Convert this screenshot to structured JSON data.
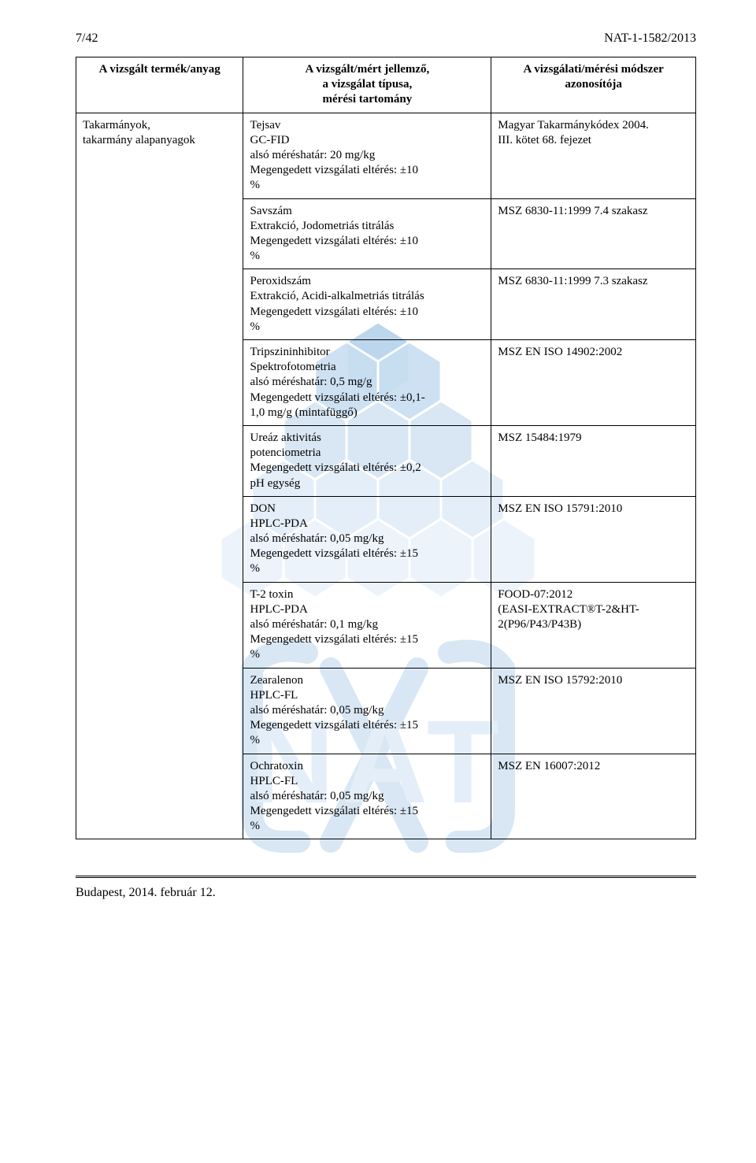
{
  "page": {
    "left_header": "7/42",
    "right_header": "NAT-1-1582/2013",
    "footer": "Budapest, 2014. február 12."
  },
  "table": {
    "headers": {
      "c1": "A vizsgált termék/anyag",
      "c2": "A vizsgált/mért jellemző,\na vizsgálat típusa,\nmérési tartomány",
      "c3": "A vizsgálati/mérési módszer\nazonosítója"
    },
    "product": "Takarmányok,\ntakarmány alapanyagok",
    "rows": [
      {
        "method": "Tejsav\nGC-FID\nalsó méréshatár: 20 mg/kg\nMegengedett vizsgálati eltérés: ±10\n%",
        "id": "Magyar Takarmánykódex 2004.\nIII. kötet 68. fejezet"
      },
      {
        "method": "Savszám\nExtrakció, Jodometriás titrálás\nMegengedett vizsgálati eltérés: ±10\n%",
        "id": "MSZ 6830-11:1999 7.4 szakasz"
      },
      {
        "method": "Peroxidszám\nExtrakció, Acidi-alkalmetriás titrálás\nMegengedett vizsgálati eltérés: ±10\n%",
        "id": "MSZ 6830-11:1999 7.3 szakasz"
      },
      {
        "method": "Tripszininhibitor\nSpektrofotometria\nalsó méréshatár: 0,5 mg/g\nMegengedett vizsgálati eltérés: ±0,1-\n1,0 mg/g (mintafüggő)",
        "id": "MSZ EN ISO 14902:2002"
      },
      {
        "method": "Ureáz aktivitás\npotenciometria\nMegengedett vizsgálati eltérés: ±0,2\npH egység",
        "id": "MSZ 15484:1979"
      },
      {
        "method": "DON\nHPLC-PDA\nalsó méréshatár: 0,05 mg/kg\nMegengedett vizsgálati eltérés: ±15\n%",
        "id": "MSZ EN ISO 15791:2010"
      },
      {
        "method": "T-2 toxin\nHPLC-PDA\nalsó méréshatár: 0,1 mg/kg\nMegengedett vizsgálati eltérés: ±15\n%",
        "id": "FOOD-07:2012\n(EASI-EXTRACT®T-2&HT-\n2(P96/P43/P43B)"
      },
      {
        "method": "Zearalenon\nHPLC-FL\nalsó méréshatár: 0,05 mg/kg\nMegengedett vizsgálati eltérés: ±15\n%",
        "id": "MSZ EN ISO 15792:2010"
      },
      {
        "method": "Ochratoxin\nHPLC-FL\nalsó méréshatár: 0,05 mg/kg\nMegengedett vizsgálati eltérés: ±15\n%",
        "id": "MSZ EN 16007:2012"
      }
    ]
  },
  "style": {
    "watermark_color_edge": "#bcd6ed",
    "watermark_color_mid": "#d9e7f4",
    "watermark_color_center": "#ecf3fa"
  }
}
